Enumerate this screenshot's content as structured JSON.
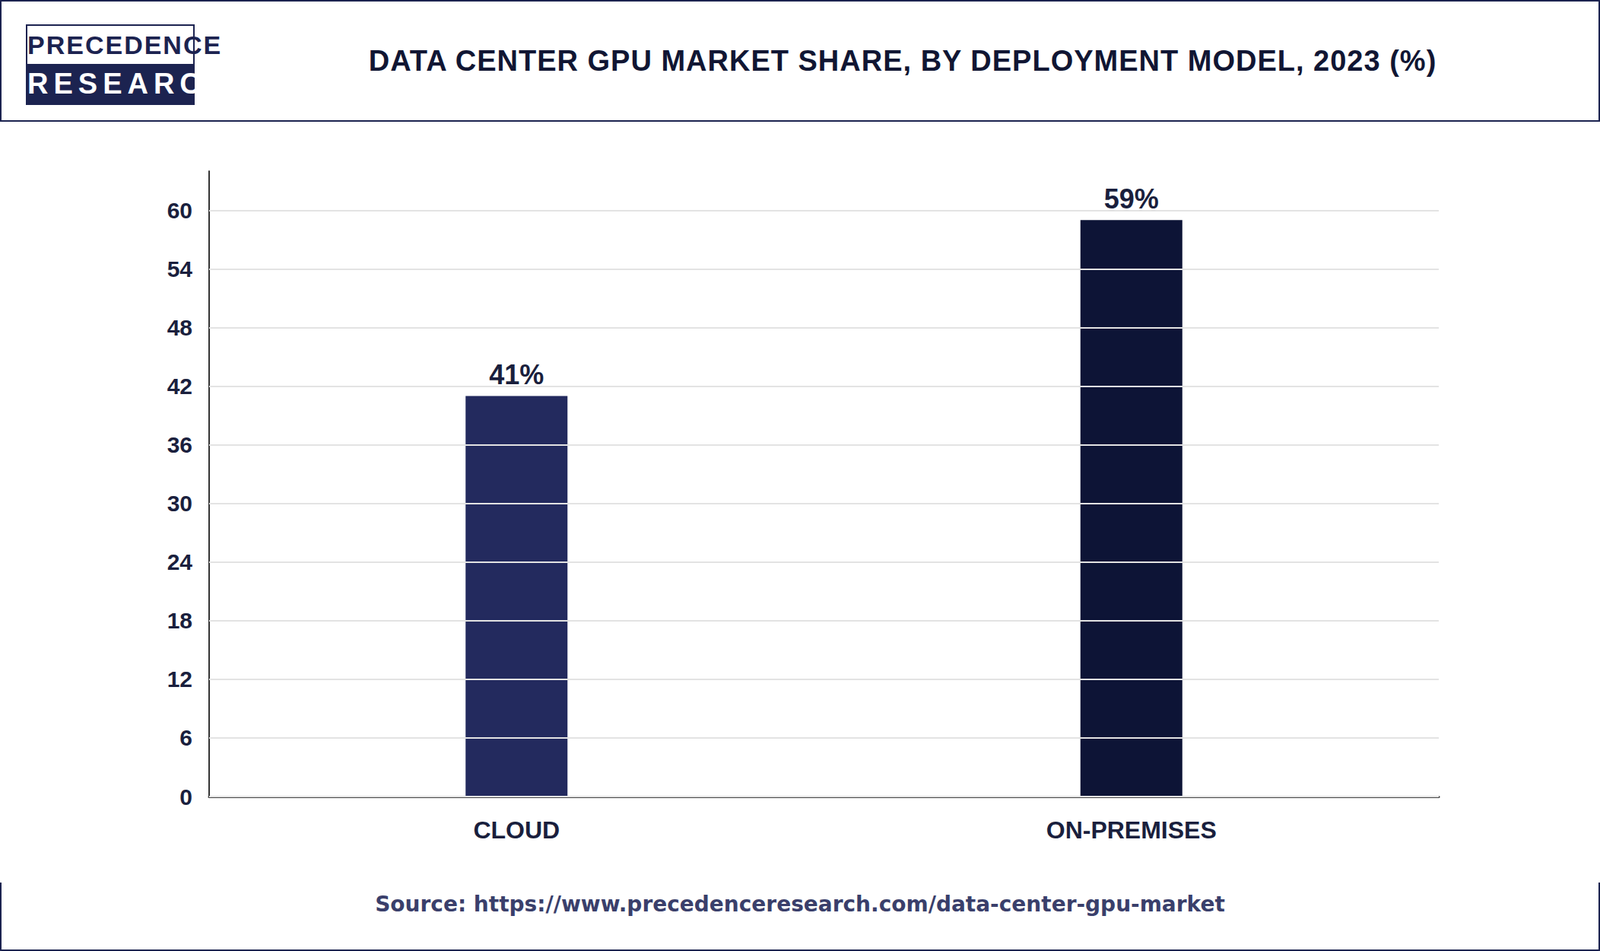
{
  "logo": {
    "line1": "PRECEDENCE",
    "line2": "RESEARCH"
  },
  "source": "Source: https://www.precedenceresearch.com/data-center-gpu-market",
  "chart_data": {
    "type": "bar",
    "title": "DATA CENTER GPU MARKET SHARE, BY DEPLOYMENT MODEL, 2023 (%)",
    "categories": [
      "CLOUD",
      "ON-PREMISES"
    ],
    "values": [
      41,
      59
    ],
    "value_labels": [
      "41%",
      "59%"
    ],
    "colors": [
      "#232a5e",
      "#0d1436"
    ],
    "ylim": [
      0,
      64
    ],
    "yticks": [
      0,
      6,
      12,
      18,
      24,
      30,
      36,
      42,
      48,
      54,
      60
    ],
    "grid": true,
    "data_labels": true
  }
}
